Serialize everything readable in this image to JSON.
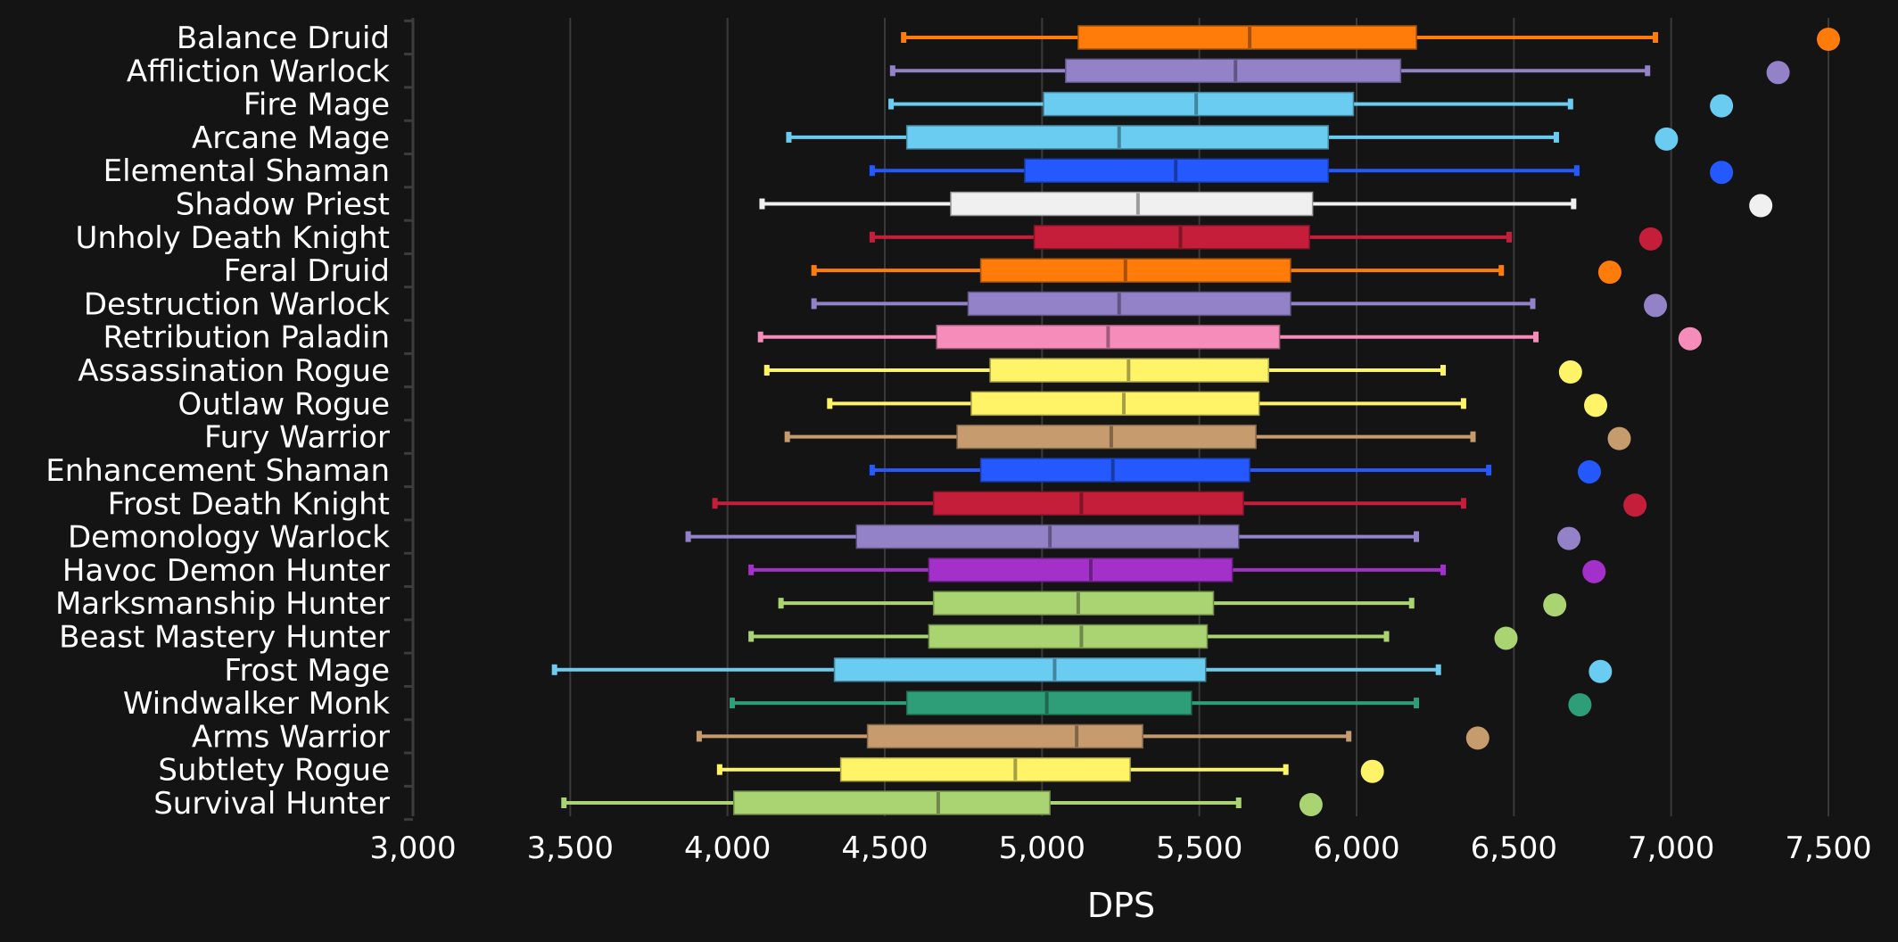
{
  "chart_data": {
    "type": "boxplot",
    "title": "",
    "xlabel": "DPS",
    "ylabel": "",
    "xlim": [
      3000,
      7500
    ],
    "x_ticks": [
      3000,
      3500,
      4000,
      4500,
      5000,
      5500,
      6000,
      6500,
      7000,
      7500
    ],
    "x_tick_labels": [
      "3,000",
      "3,500",
      "4,000",
      "4,500",
      "5,000",
      "5,500",
      "6,000",
      "6,500",
      "7,000",
      "7,500"
    ],
    "grid": "vertical",
    "legend": "none",
    "series": [
      {
        "name": "Balance Druid",
        "color": "#FF7C0A",
        "whisker_low": 4560,
        "q1": 5115,
        "median": 5660,
        "q3": 6190,
        "whisker_high": 6950,
        "max": 7500
      },
      {
        "name": "Affliction Warlock",
        "color": "#9482C9",
        "whisker_low": 4525,
        "q1": 5075,
        "median": 5615,
        "q3": 6140,
        "whisker_high": 6925,
        "max": 7340
      },
      {
        "name": "Fire Mage",
        "color": "#69CCF0",
        "whisker_low": 4520,
        "q1": 5005,
        "median": 5490,
        "q3": 5990,
        "whisker_high": 6680,
        "max": 7160
      },
      {
        "name": "Arcane Mage",
        "color": "#69CCF0",
        "whisker_low": 4195,
        "q1": 4570,
        "median": 5245,
        "q3": 5910,
        "whisker_high": 6635,
        "max": 6985
      },
      {
        "name": "Elemental Shaman",
        "color": "#2459FF",
        "whisker_low": 4460,
        "q1": 4945,
        "median": 5425,
        "q3": 5910,
        "whisker_high": 6700,
        "max": 7160
      },
      {
        "name": "Shadow Priest",
        "color": "#F0F0F0",
        "whisker_low": 4110,
        "q1": 4710,
        "median": 5305,
        "q3": 5860,
        "whisker_high": 6690,
        "max": 7285
      },
      {
        "name": "Unholy Death Knight",
        "color": "#C41E3A",
        "whisker_low": 4460,
        "q1": 4975,
        "median": 5440,
        "q3": 5850,
        "whisker_high": 6485,
        "max": 6935
      },
      {
        "name": "Feral Druid",
        "color": "#FF7C0A",
        "whisker_low": 4275,
        "q1": 4805,
        "median": 5265,
        "q3": 5790,
        "whisker_high": 6460,
        "max": 6805
      },
      {
        "name": "Destruction Warlock",
        "color": "#9482C9",
        "whisker_low": 4275,
        "q1": 4765,
        "median": 5245,
        "q3": 5790,
        "whisker_high": 6560,
        "max": 6950
      },
      {
        "name": "Retribution Paladin",
        "color": "#F58CBA",
        "whisker_low": 4105,
        "q1": 4665,
        "median": 5210,
        "q3": 5755,
        "whisker_high": 6570,
        "max": 7060
      },
      {
        "name": "Assassination Rogue",
        "color": "#FFF468",
        "whisker_low": 4125,
        "q1": 4835,
        "median": 5275,
        "q3": 5720,
        "whisker_high": 6275,
        "max": 6680
      },
      {
        "name": "Outlaw Rogue",
        "color": "#FFF468",
        "whisker_low": 4325,
        "q1": 4775,
        "median": 5260,
        "q3": 5690,
        "whisker_high": 6340,
        "max": 6760
      },
      {
        "name": "Fury Warrior",
        "color": "#C69B6D",
        "whisker_low": 4190,
        "q1": 4730,
        "median": 5220,
        "q3": 5680,
        "whisker_high": 6370,
        "max": 6835
      },
      {
        "name": "Enhancement Shaman",
        "color": "#2459FF",
        "whisker_low": 4460,
        "q1": 4805,
        "median": 5225,
        "q3": 5660,
        "whisker_high": 6420,
        "max": 6740
      },
      {
        "name": "Frost Death Knight",
        "color": "#C41E3A",
        "whisker_low": 3960,
        "q1": 4655,
        "median": 5125,
        "q3": 5640,
        "whisker_high": 6340,
        "max": 6885
      },
      {
        "name": "Demonology Warlock",
        "color": "#9482C9",
        "whisker_low": 3875,
        "q1": 4410,
        "median": 5025,
        "q3": 5625,
        "whisker_high": 6190,
        "max": 6675
      },
      {
        "name": "Havoc Demon Hunter",
        "color": "#A330C9",
        "whisker_low": 4075,
        "q1": 4640,
        "median": 5155,
        "q3": 5605,
        "whisker_high": 6275,
        "max": 6755
      },
      {
        "name": "Marksmanship Hunter",
        "color": "#AAD372",
        "whisker_low": 4170,
        "q1": 4655,
        "median": 5115,
        "q3": 5545,
        "whisker_high": 6175,
        "max": 6630
      },
      {
        "name": "Beast Mastery Hunter",
        "color": "#AAD372",
        "whisker_low": 4075,
        "q1": 4640,
        "median": 5125,
        "q3": 5525,
        "whisker_high": 6095,
        "max": 6475
      },
      {
        "name": "Frost Mage",
        "color": "#69CCF0",
        "whisker_low": 3450,
        "q1": 4340,
        "median": 5040,
        "q3": 5520,
        "whisker_high": 6260,
        "max": 6775
      },
      {
        "name": "Windwalker Monk",
        "color": "#2E9E78",
        "whisker_low": 4015,
        "q1": 4570,
        "median": 5015,
        "q3": 5475,
        "whisker_high": 6190,
        "max": 6710
      },
      {
        "name": "Arms Warrior",
        "color": "#C69B6D",
        "whisker_low": 3910,
        "q1": 4445,
        "median": 5110,
        "q3": 5320,
        "whisker_high": 5975,
        "max": 6385
      },
      {
        "name": "Subtlety Rogue",
        "color": "#FFF468",
        "whisker_low": 3975,
        "q1": 4360,
        "median": 4915,
        "q3": 5280,
        "whisker_high": 5775,
        "max": 6050
      },
      {
        "name": "Survival Hunter",
        "color": "#AAD372",
        "whisker_low": 3480,
        "q1": 4020,
        "median": 4670,
        "q3": 5025,
        "whisker_high": 5625,
        "max": 5855
      }
    ]
  }
}
